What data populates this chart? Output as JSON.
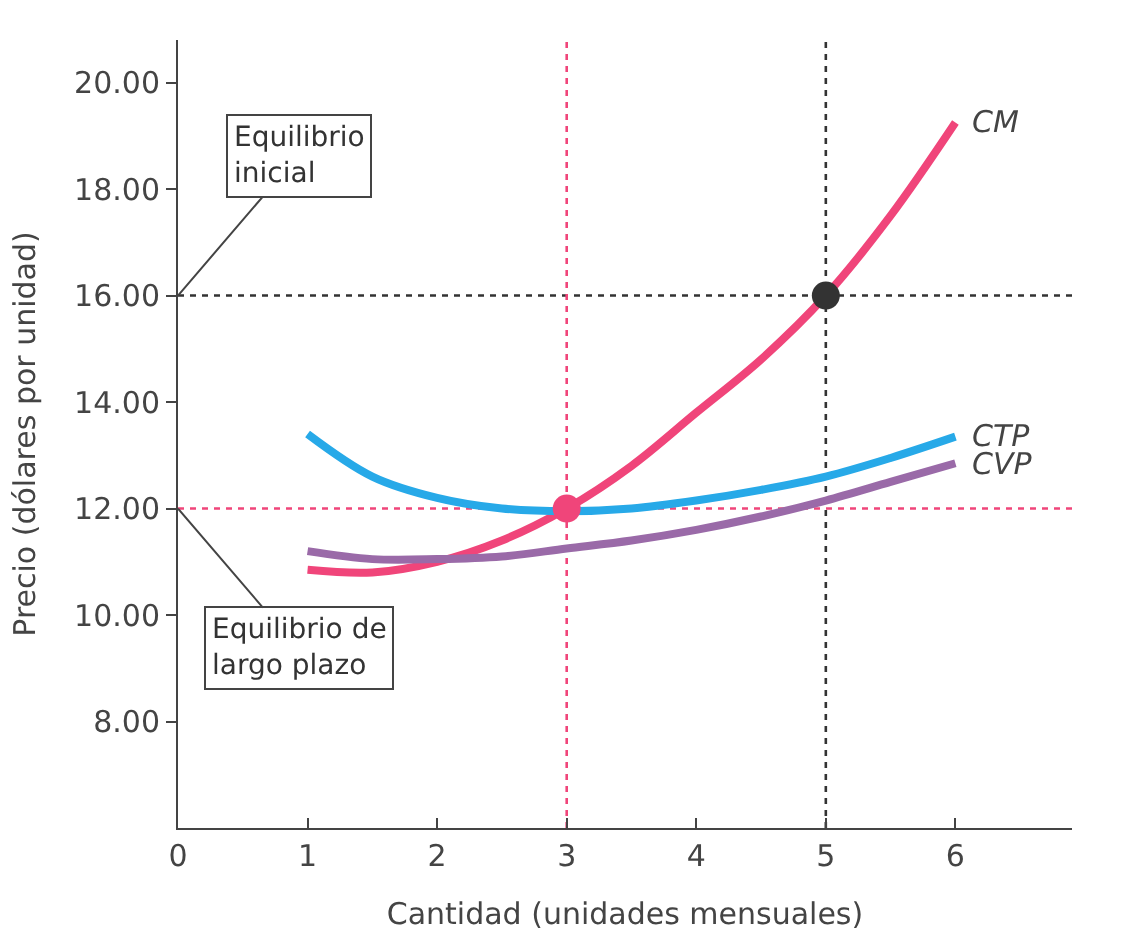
{
  "chart_data": {
    "type": "line",
    "xlabel": "Cantidad (unidades mensuales)",
    "ylabel": "Precio (dólares por unidad)",
    "x": [
      1,
      1.5,
      2,
      2.5,
      3,
      3.5,
      4,
      4.5,
      5,
      5.5,
      6
    ],
    "series": [
      {
        "name": "CM",
        "color": "#f0457a",
        "values": [
          10.85,
          10.8,
          11.0,
          11.4,
          12.0,
          12.8,
          13.8,
          14.8,
          16.0,
          17.5,
          19.25
        ]
      },
      {
        "name": "CTP",
        "color": "#27a9e8",
        "values": [
          13.4,
          12.6,
          12.2,
          12.0,
          11.95,
          12.0,
          12.15,
          12.35,
          12.6,
          12.95,
          13.35
        ]
      },
      {
        "name": "CVP",
        "color": "#9a6aa8",
        "values": [
          11.2,
          11.05,
          11.05,
          11.1,
          11.25,
          11.4,
          11.6,
          11.85,
          12.15,
          12.5,
          12.85
        ]
      },
      {
        "type": "scatter",
        "marker": "circle",
        "x": [
          3,
          5
        ],
        "values": [
          12,
          16
        ],
        "colors": [
          "#f0457a",
          "#333333"
        ]
      }
    ],
    "xlim": [
      0,
      6.9
    ],
    "xticks": [
      0,
      1,
      2,
      3,
      4,
      5,
      6
    ],
    "ylim": [
      6,
      20.8
    ],
    "yticks": [
      {
        "value": 8,
        "label": "8.00"
      },
      {
        "value": 10,
        "label": "10.00"
      },
      {
        "value": 12,
        "label": "12.00"
      },
      {
        "value": 14,
        "label": "14.00"
      },
      {
        "value": 16,
        "label": "16.00"
      },
      {
        "value": 18,
        "label": "18.00"
      },
      {
        "value": 20,
        "label": "20.00"
      }
    ],
    "ref_lines": [
      {
        "axis": "y",
        "value": 16,
        "color": "#333333",
        "line_style": "dotted"
      },
      {
        "axis": "x",
        "value": 5,
        "color": "#333333",
        "line_style": "dotted"
      },
      {
        "axis": "y",
        "value": 12,
        "color": "#f0457a",
        "line_style": "dotted"
      },
      {
        "axis": "x",
        "value": 3,
        "color": "#f0457a",
        "line_style": "dotted"
      }
    ],
    "annotations": [
      {
        "text": "Equilibrio\ninicial",
        "x": 0,
        "y": 16
      },
      {
        "text": "Equilibrio de\nlargo plazo",
        "x": 0,
        "y": 12
      }
    ],
    "grid": false,
    "legend": false,
    "marker": "none",
    "line_style": "solid"
  }
}
